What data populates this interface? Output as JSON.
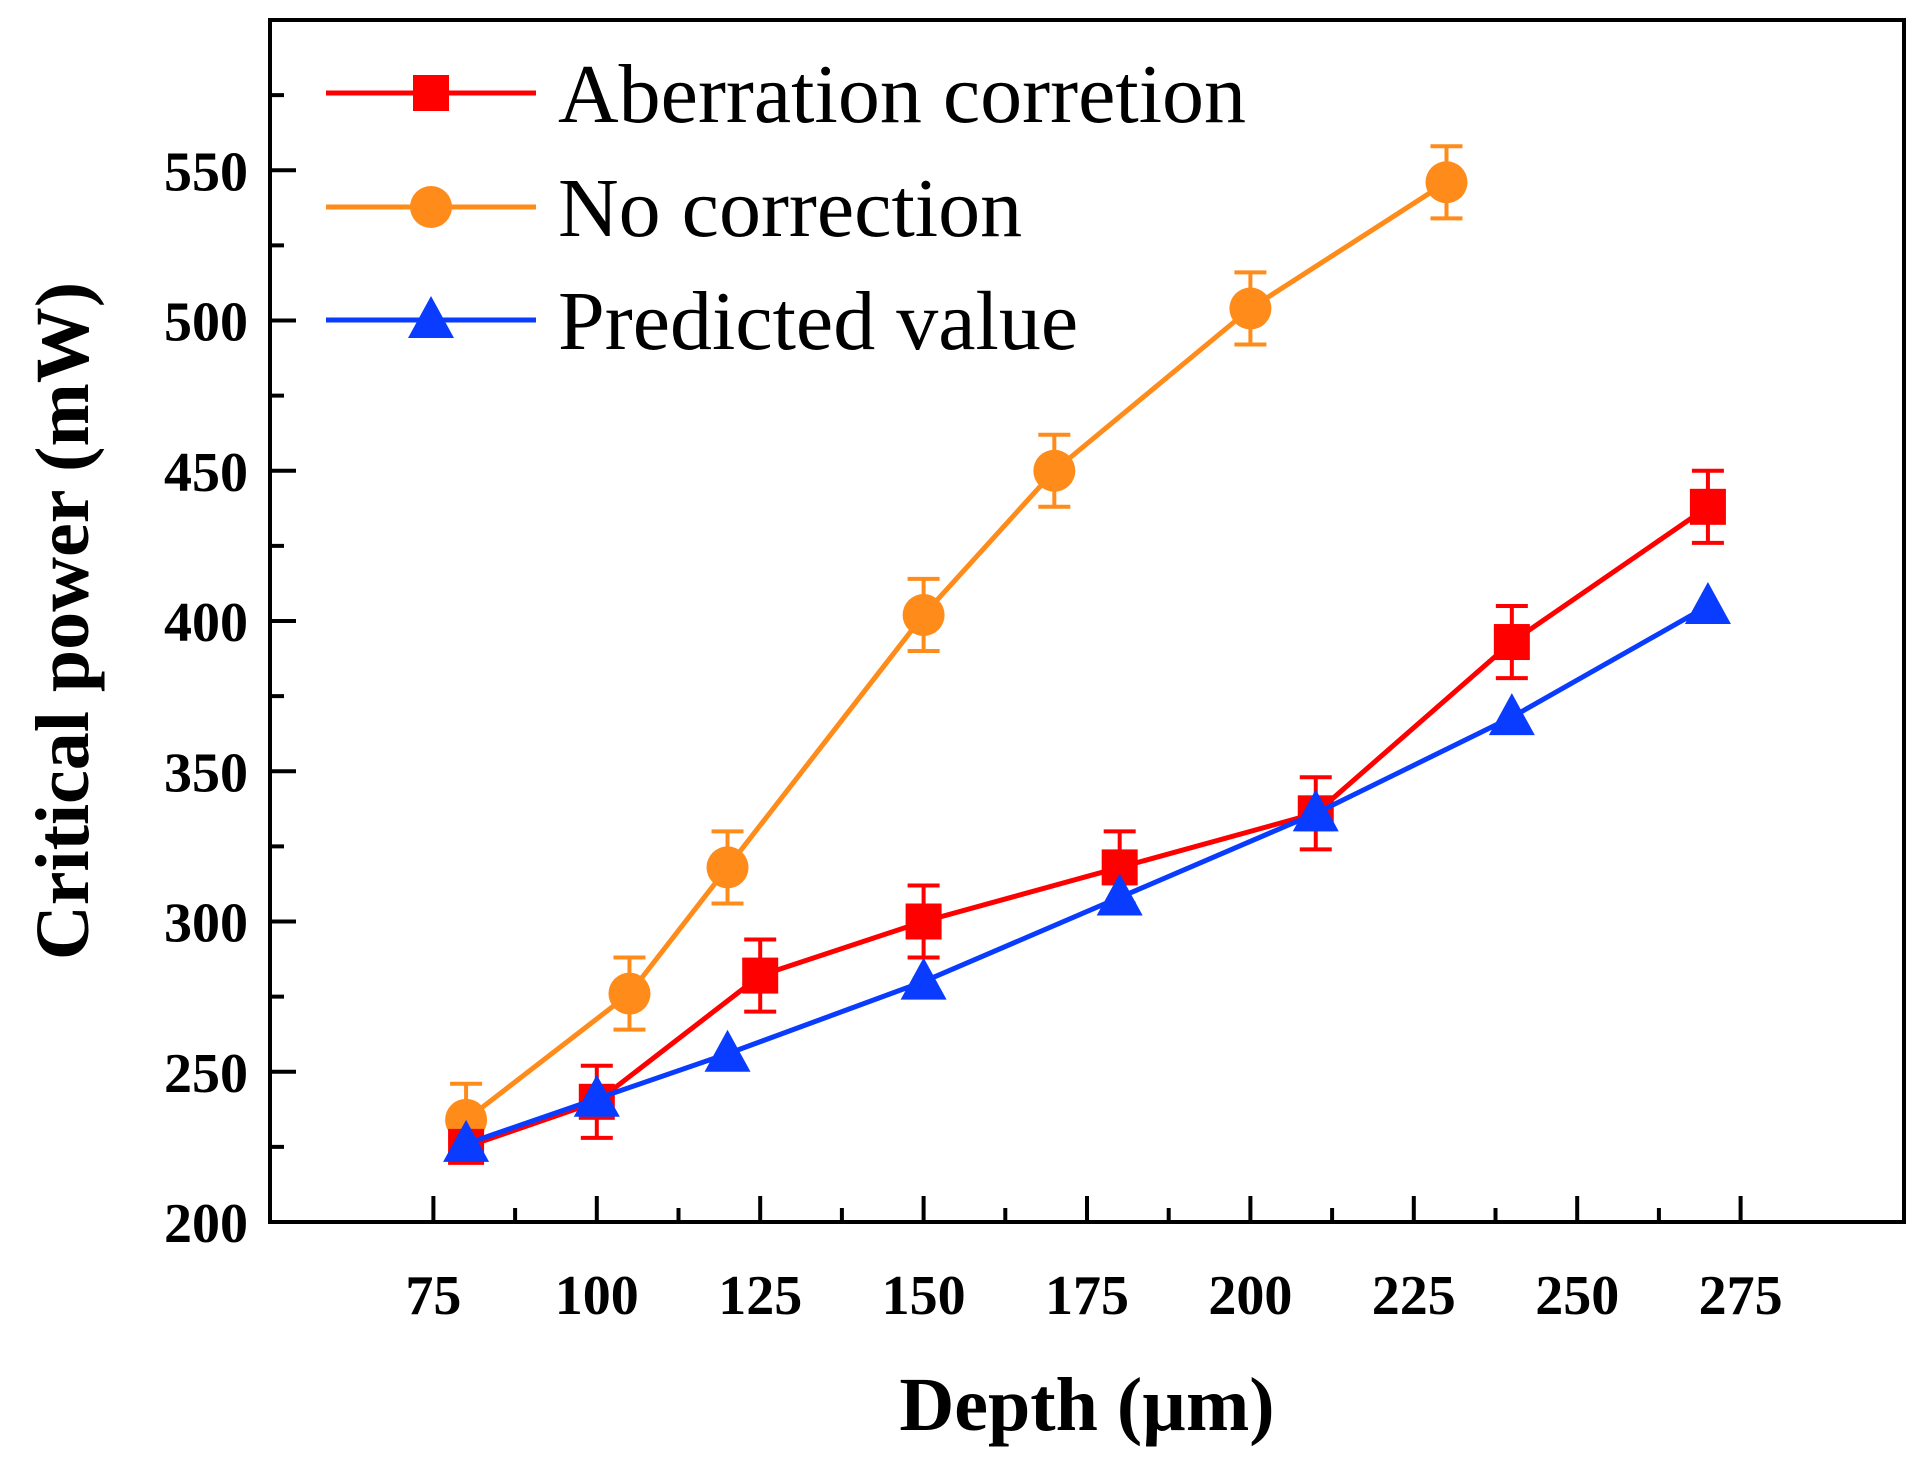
{
  "chart_data": {
    "type": "line",
    "title": "",
    "xlabel": "Depth (µm)",
    "ylabel": "Critical power (mW)",
    "xlim": [
      50,
      300
    ],
    "ylim": [
      200,
      600
    ],
    "xticks": [
      75,
      100,
      125,
      150,
      175,
      200,
      225,
      250,
      275
    ],
    "yticks": [
      200,
      250,
      300,
      350,
      400,
      450,
      500,
      550
    ],
    "xtick_labels": [
      "75",
      "100",
      "125",
      "150",
      "175",
      "200",
      "225",
      "250",
      "275"
    ],
    "ytick_labels": [
      "200",
      "250",
      "300",
      "350",
      "400",
      "450",
      "500",
      "550"
    ],
    "grid": false,
    "legend_position": "top-left",
    "series": [
      {
        "name": "Aberration corretion",
        "color": "#ff0000",
        "marker": "square",
        "x": [
          80,
          100,
          125,
          150,
          180,
          210,
          240,
          270
        ],
        "y": [
          225,
          240,
          282,
          300,
          318,
          336,
          393,
          438
        ],
        "error": [
          0,
          12,
          12,
          12,
          12,
          12,
          12,
          12
        ]
      },
      {
        "name": "No correction",
        "color": "#ff8c1a",
        "marker": "circle",
        "x": [
          80,
          105,
          120,
          150,
          170,
          200,
          230
        ],
        "y": [
          234,
          276,
          318,
          402,
          450,
          504,
          546
        ],
        "error": [
          12,
          12,
          12,
          12,
          12,
          12,
          12
        ]
      },
      {
        "name": "Predicted value",
        "color": "#0a3cff",
        "marker": "triangle",
        "x": [
          80,
          100,
          120,
          150,
          180,
          210,
          240,
          270
        ],
        "y": [
          226,
          241,
          256,
          280,
          308,
          336,
          368,
          405
        ],
        "error": [
          0,
          0,
          0,
          0,
          0,
          0,
          0,
          0
        ]
      }
    ]
  }
}
